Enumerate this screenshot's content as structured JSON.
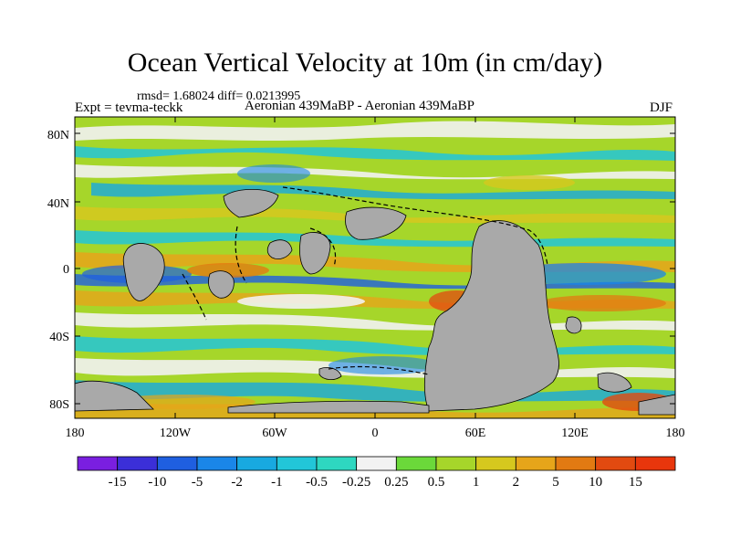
{
  "title": "Ocean Vertical Velocity at 10m (in cm/day)",
  "stats": "rmsd= 1.68024 diff= 0.0213995",
  "experiment": "Expt = tevma-teckk",
  "case": "Aeronian 439MaBP - Aeronian 439MaBP",
  "season": "DJF",
  "lat_ticks": [
    "80N",
    "40N",
    "0",
    "40S",
    "80S"
  ],
  "lon_ticks": [
    "180",
    "120W",
    "60W",
    "0",
    "60E",
    "120E",
    "180"
  ],
  "colorbar": {
    "labels": [
      "-15",
      "-10",
      "-5",
      "-2",
      "-1",
      "-0.5",
      "-0.25",
      "0.25",
      "0.5",
      "1",
      "2",
      "5",
      "10",
      "15"
    ],
    "colors": [
      "#7a1fe0",
      "#3b2fd8",
      "#1f5fe0",
      "#1a86e8",
      "#18a9e0",
      "#22c6d8",
      "#2ed7c0",
      "#f2f2f2",
      "#6bd93a",
      "#a6d62a",
      "#d6c81e",
      "#e6a51a",
      "#e27a12",
      "#e24a10",
      "#e8360c"
    ]
  },
  "map_colors": {
    "land": "#a9a9a9",
    "ocean_base": "#a6d62a"
  }
}
